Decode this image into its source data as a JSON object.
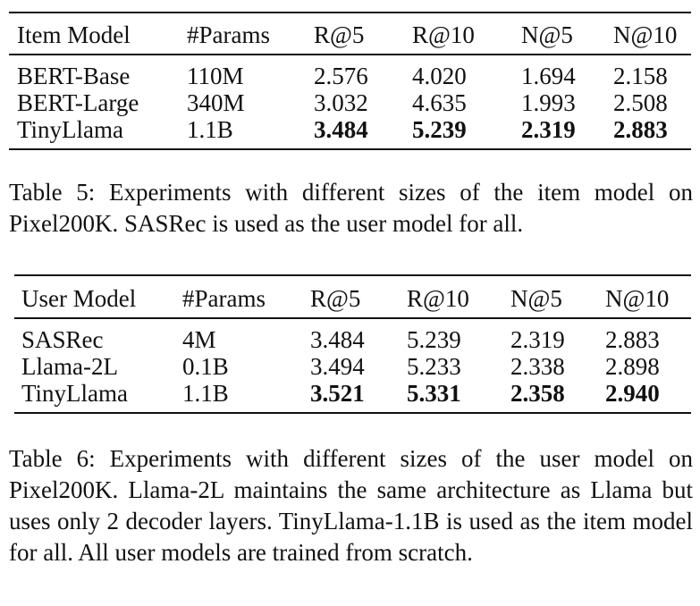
{
  "table5": {
    "headers": [
      "Item Model",
      "#Params",
      "R@5",
      "R@10",
      "N@5",
      "N@10"
    ],
    "rows": [
      [
        "BERT-Base",
        "110M",
        "2.576",
        "4.020",
        "1.694",
        "2.158"
      ],
      [
        "BERT-Large",
        "340M",
        "3.032",
        "4.635",
        "1.993",
        "2.508"
      ],
      [
        "TinyLlama",
        "1.1B",
        "3.484",
        "5.239",
        "2.319",
        "2.883"
      ]
    ],
    "caption": "Table 5: Experiments with different sizes of the item model on Pixel200K. SASRec is used as the user model for all."
  },
  "table6": {
    "headers": [
      "User Model",
      "#Params",
      "R@5",
      "R@10",
      "N@5",
      "N@10"
    ],
    "rows": [
      [
        "SASRec",
        "4M",
        "3.484",
        "5.239",
        "2.319",
        "2.883"
      ],
      [
        "Llama-2L",
        "0.1B",
        "3.494",
        "5.233",
        "2.338",
        "2.898"
      ],
      [
        "TinyLlama",
        "1.1B",
        "3.521",
        "5.331",
        "2.358",
        "2.940"
      ]
    ],
    "caption": "Table 6: Experiments with different sizes of the user model on Pixel200K. Llama-2L maintains the same architecture as Llama but uses only 2 decoder layers. TinyLlama-1.1B is used as the item model for all. All user models are trained from scratch."
  }
}
